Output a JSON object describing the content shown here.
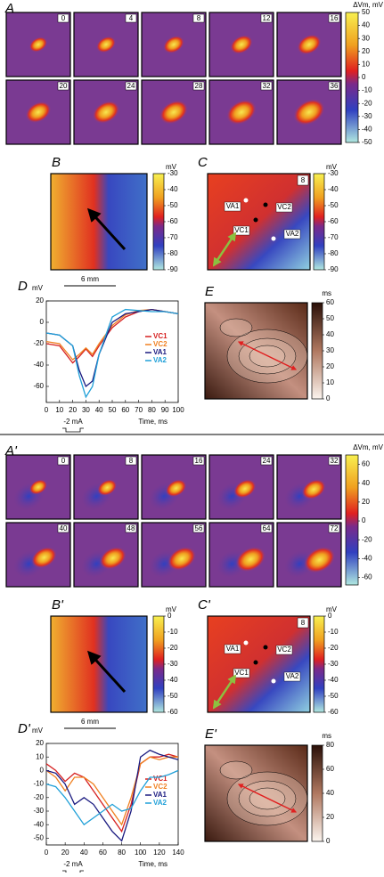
{
  "top": {
    "A": {
      "label": "A",
      "frames": [
        "0",
        "4",
        "8",
        "12",
        "16",
        "20",
        "24",
        "28",
        "32",
        "36"
      ],
      "cbar_title": "ΔVm, mV",
      "cbar_lim": [
        -50,
        50
      ],
      "cbar_ticks": [
        50,
        40,
        30,
        20,
        10,
        0,
        -10,
        -20,
        -30,
        -40,
        -50
      ]
    },
    "B": {
      "label": "B",
      "cbar_title": "mV",
      "cbar_lim": [
        -90,
        -30
      ],
      "cbar_ticks": [
        -30,
        -40,
        -50,
        -60,
        -70,
        -80,
        -90
      ],
      "scale": "6 mm"
    },
    "C": {
      "label": "C",
      "frame": "8",
      "sites": [
        "VA1",
        "VC2",
        "VC1",
        "VA2"
      ],
      "cbar_title": "mV",
      "cbar_lim": [
        -90,
        -30
      ],
      "cbar_ticks": [
        -30,
        -40,
        -50,
        -60,
        -70,
        -80,
        -90
      ]
    },
    "D": {
      "label": "D",
      "chart": {
        "type": "line",
        "y_label": "mV",
        "x_label": "Time, ms",
        "stim_label": "-2 mA",
        "x": [
          0,
          10,
          20,
          25,
          30,
          35,
          40,
          50,
          60,
          70,
          80,
          90,
          100
        ],
        "xlim": [
          0,
          100
        ],
        "xticks": [
          0,
          10,
          20,
          30,
          40,
          50,
          60,
          70,
          80,
          90,
          100
        ],
        "ylim": [
          -75,
          20
        ],
        "yticks": [
          20,
          0,
          -20,
          -40,
          -60
        ],
        "series": [
          {
            "name": "VC1",
            "color": "#d62020",
            "values": [
              -20,
              -22,
              -38,
              -32,
              -25,
              -32,
              -22,
              -5,
              5,
              10,
              12,
              10,
              8
            ]
          },
          {
            "name": "VC2",
            "color": "#f08020",
            "values": [
              -18,
              -20,
              -35,
              -30,
              -24,
              -30,
              -20,
              -3,
              7,
              11,
              12,
              10,
              8
            ]
          },
          {
            "name": "VA1",
            "color": "#1a1a80",
            "values": [
              -10,
              -12,
              -22,
              -45,
              -60,
              -55,
              -30,
              0,
              8,
              10,
              12,
              10,
              8
            ]
          },
          {
            "name": "VA2",
            "color": "#20a0d8",
            "values": [
              -10,
              -12,
              -22,
              -50,
              -70,
              -60,
              -30,
              5,
              12,
              11,
              10,
              10,
              8
            ]
          }
        ]
      }
    },
    "E": {
      "label": "E",
      "cbar_title": "ms",
      "cbar_lim": [
        0,
        60
      ],
      "cbar_ticks": [
        60,
        50,
        40,
        30,
        20,
        10,
        0
      ]
    }
  },
  "bottom": {
    "A": {
      "label": "A'",
      "frames": [
        "0",
        "8",
        "16",
        "24",
        "32",
        "40",
        "48",
        "56",
        "64",
        "72"
      ],
      "cbar_title": "ΔVm, mV",
      "cbar_lim": [
        -68,
        70
      ],
      "cbar_ticks": [
        60,
        40,
        20,
        0,
        -20,
        -40,
        -60
      ]
    },
    "B": {
      "label": "B'",
      "cbar_title": "mV",
      "cbar_lim": [
        -60,
        0
      ],
      "cbar_ticks": [
        0,
        -10,
        -20,
        -30,
        -40,
        -50,
        -60
      ],
      "scale": "6 mm"
    },
    "C": {
      "label": "C'",
      "frame": "8",
      "sites": [
        "VA1",
        "VC2",
        "VC1",
        "VA2"
      ],
      "cbar_title": "mV",
      "cbar_lim": [
        -60,
        0
      ],
      "cbar_ticks": [
        0,
        -10,
        -20,
        -30,
        -40,
        -50,
        -60
      ]
    },
    "D": {
      "label": "D'",
      "chart": {
        "type": "line",
        "y_label": "mV",
        "x_label": "Time, ms",
        "stim_label": "-2 mA",
        "x": [
          0,
          10,
          20,
          30,
          40,
          50,
          60,
          70,
          80,
          90,
          100,
          110,
          120,
          130,
          140
        ],
        "xlim": [
          0,
          140
        ],
        "xticks": [
          0,
          20,
          40,
          60,
          80,
          100,
          120,
          140
        ],
        "ylim": [
          -55,
          20
        ],
        "yticks": [
          20,
          10,
          0,
          -10,
          -20,
          -30,
          -40,
          -50
        ],
        "series": [
          {
            "name": "VC1",
            "color": "#d62020",
            "values": [
              5,
              0,
              -8,
              -2,
              -5,
              -15,
              -25,
              -35,
              -45,
              -25,
              5,
              10,
              10,
              12,
              10
            ]
          },
          {
            "name": "VC2",
            "color": "#f08020",
            "values": [
              0,
              -5,
              -15,
              -5,
              -5,
              -10,
              -20,
              -30,
              -40,
              -20,
              5,
              10,
              8,
              10,
              10
            ]
          },
          {
            "name": "VA1",
            "color": "#1a1a80",
            "values": [
              0,
              -2,
              -10,
              -25,
              -20,
              -25,
              -35,
              -45,
              -52,
              -30,
              10,
              15,
              12,
              10,
              8
            ]
          },
          {
            "name": "VA2",
            "color": "#20a0d8",
            "values": [
              -10,
              -12,
              -20,
              -30,
              -40,
              -35,
              -30,
              -25,
              -30,
              -28,
              -15,
              -5,
              -5,
              -3,
              0
            ]
          }
        ]
      }
    },
    "E": {
      "label": "E'",
      "cbar_title": "ms",
      "cbar_lim": [
        0,
        80
      ],
      "cbar_ticks": [
        80,
        60,
        40,
        20,
        0
      ]
    }
  }
}
